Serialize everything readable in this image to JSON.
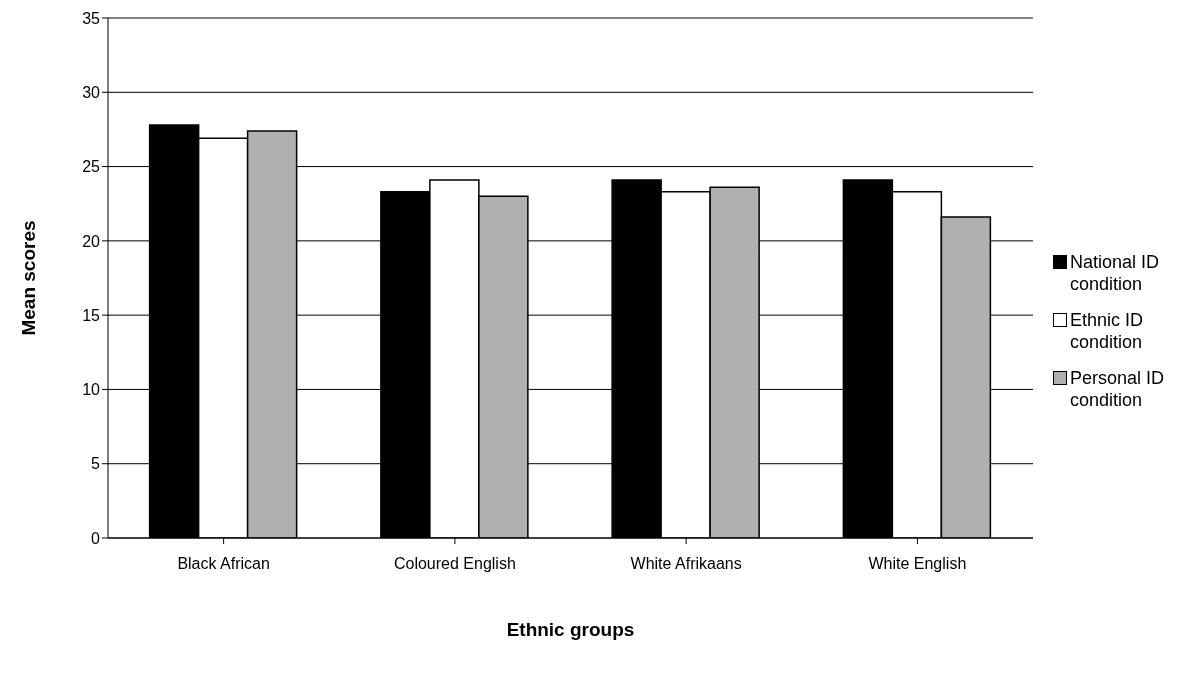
{
  "chart_data": {
    "type": "bar",
    "xlabel": "Ethnic groups",
    "ylabel": "Mean scores",
    "categories": [
      "Black African",
      "Coloured English",
      "White Afrikaans",
      "White English"
    ],
    "series": [
      {
        "name": "National ID condition",
        "color": "#000000",
        "values": [
          27.8,
          23.3,
          24.1,
          24.1
        ]
      },
      {
        "name": "Ethnic ID condition",
        "color": "#ffffff",
        "values": [
          26.9,
          24.1,
          23.3,
          23.3
        ]
      },
      {
        "name": "Personal ID condition",
        "color": "#b0b0b0",
        "values": [
          27.4,
          23.0,
          23.6,
          21.6
        ]
      }
    ],
    "ylim": [
      0,
      35
    ],
    "yticks": [
      0,
      5,
      10,
      15,
      20,
      25,
      30,
      35
    ],
    "grid": "y",
    "legend": "right"
  }
}
